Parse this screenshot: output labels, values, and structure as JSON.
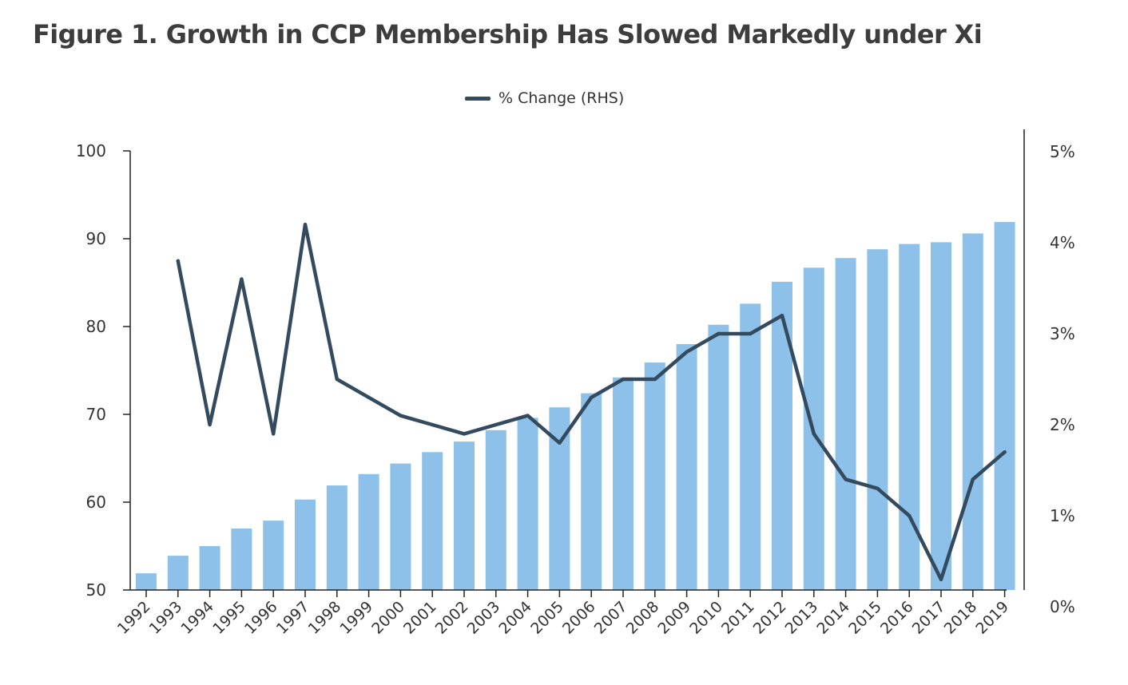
{
  "title": "Figure 1. Growth in CCP Membership Has Slowed Markedly under Xi",
  "legend": {
    "line_label": "% Change (RHS)"
  },
  "colors": {
    "bar": "#8dc1e9",
    "line": "#344a5e",
    "axis": "#222222",
    "text": "#333333"
  },
  "chart_data": {
    "type": "bar",
    "categories": [
      "1992",
      "1993",
      "1994",
      "1995",
      "1996",
      "1997",
      "1998",
      "1999",
      "2000",
      "2001",
      "2002",
      "2003",
      "2004",
      "2005",
      "2006",
      "2007",
      "2008",
      "2009",
      "2010",
      "2011",
      "2012",
      "2013",
      "2014",
      "2015",
      "2016",
      "2017",
      "2018",
      "2019"
    ],
    "series": [
      {
        "type": "bar",
        "axis": "left",
        "values": [
          51.9,
          53.9,
          55.0,
          57.0,
          57.9,
          60.3,
          61.9,
          63.2,
          64.4,
          65.7,
          66.9,
          68.2,
          69.6,
          70.8,
          72.4,
          74.2,
          75.9,
          78.0,
          80.2,
          82.6,
          85.1,
          86.7,
          87.8,
          88.8,
          89.4,
          89.6,
          90.6,
          91.9
        ]
      },
      {
        "type": "line",
        "axis": "right",
        "name": "% Change (RHS)",
        "values": [
          null,
          3.8,
          2.0,
          3.6,
          1.9,
          4.2,
          2.5,
          2.3,
          2.1,
          2.0,
          1.9,
          2.0,
          2.1,
          1.8,
          2.3,
          2.5,
          2.5,
          2.8,
          3.0,
          3.0,
          3.2,
          1.9,
          1.4,
          1.3,
          1.0,
          0.3,
          1.4,
          1.7
        ]
      }
    ],
    "ylim": [
      50,
      100
    ],
    "y_ticks": [
      50,
      60,
      70,
      80,
      90,
      100
    ],
    "y2lim": [
      0,
      5
    ],
    "y2_ticks": [
      "0%",
      "1%",
      "2%",
      "3%",
      "4%",
      "5%"
    ],
    "grid": false,
    "legend_position": "top-center"
  }
}
